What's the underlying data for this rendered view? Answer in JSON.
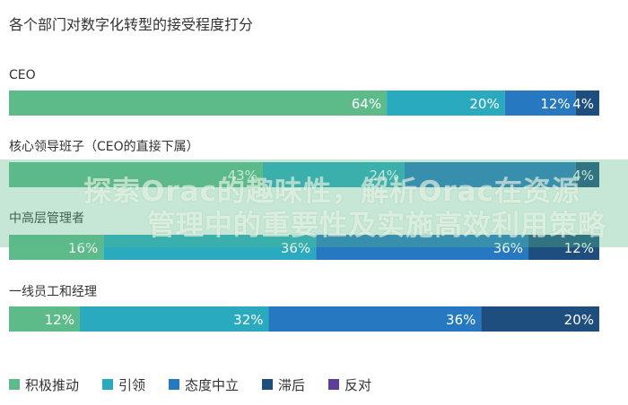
{
  "chart_data": {
    "type": "bar",
    "stacked": true,
    "orientation": "horizontal",
    "title": "各个部门对数字化转型的接受程度打分",
    "categories": [
      "CEO",
      "核心领导班子（CEO的直接下属）",
      "中高层管理者",
      "一线员工和经理"
    ],
    "series": [
      {
        "name": "积极推动",
        "color": "#5dbb8a",
        "values": [
          64,
          43,
          16,
          12
        ]
      },
      {
        "name": "引领",
        "color": "#29aabf",
        "values": [
          20,
          24,
          36,
          32
        ]
      },
      {
        "name": "态度中立",
        "color": "#2679c0",
        "values": [
          12,
          29,
          36,
          36
        ]
      },
      {
        "name": "滞后",
        "color": "#1d4e7e",
        "values": [
          4,
          4,
          12,
          20
        ]
      },
      {
        "name": "反对",
        "color": "#5b3f9a",
        "values": [
          0,
          0,
          0,
          0
        ]
      }
    ],
    "data_labels": [
      [
        "64%",
        "20%",
        "12%",
        "4%"
      ],
      [
        "43%",
        "24%",
        "",
        "4%"
      ],
      [
        "16%",
        "36%",
        "36%",
        "12%"
      ],
      [
        "12%",
        "32%",
        "36%",
        "20%"
      ]
    ],
    "xlim": [
      0,
      100
    ],
    "legend_position": "bottom-left",
    "grid": false
  },
  "overlay": {
    "band_color": "#5dbb8a",
    "line1": "探索Orac的趣味性，解析Orac在资源",
    "line2": "管理中的重要性及实施高效利用策略"
  }
}
